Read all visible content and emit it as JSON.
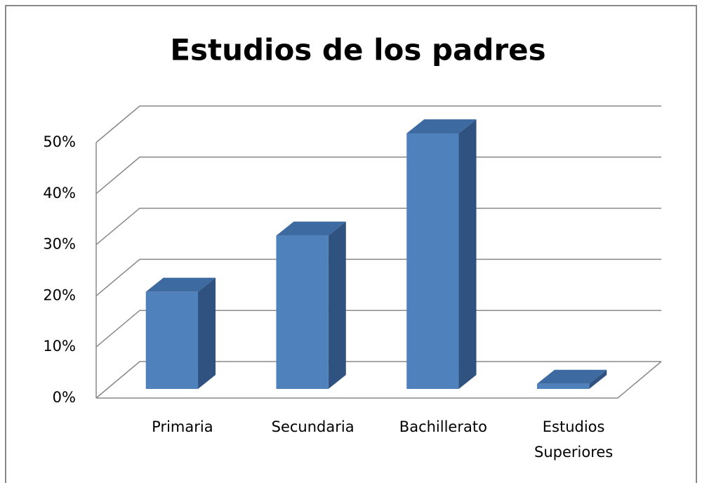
{
  "chart_data": {
    "type": "bar3d",
    "title": "Estudios de los padres",
    "categories": [
      "Primaria",
      "Secundaria",
      "Bachillerato",
      "Estudios Superiores"
    ],
    "values": [
      19,
      30,
      50,
      1
    ],
    "color": "#4f81bd",
    "ylim": [
      0,
      50
    ],
    "yticks": [
      {
        "value": 0,
        "label": "0%"
      },
      {
        "value": 10,
        "label": "10%"
      },
      {
        "value": 20,
        "label": "20%"
      },
      {
        "value": 30,
        "label": "30%"
      },
      {
        "value": 40,
        "label": "40%"
      },
      {
        "value": 50,
        "label": "50%"
      }
    ],
    "grid": true
  }
}
